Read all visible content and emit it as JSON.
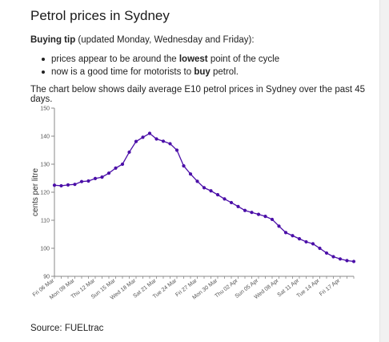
{
  "page": {
    "title": "Petrol prices in Sydney",
    "tip_bold": "Buying tip",
    "tip_rest": " (updated Monday, Wednesday and Friday):",
    "bullet1_pre": "prices appear to be around the ",
    "bullet1_bold": "lowest",
    "bullet1_post": " point of the cycle",
    "bullet2_pre": "now is a good time for motorists to ",
    "bullet2_bold": "buy",
    "bullet2_post": " petrol.",
    "description": "The chart below shows daily average E10 petrol prices in Sydney over the past 45 days.",
    "source": "Source: FUELtrac"
  },
  "colors": {
    "line": "#4b0fa8",
    "axis": "#888888"
  },
  "chart_data": {
    "type": "line",
    "ylabel": "cents per litre",
    "ylim": [
      90,
      150
    ],
    "yticks": [
      90,
      100,
      110,
      120,
      130,
      140,
      150
    ],
    "xtick_labels": [
      "Fri 06 Mar",
      "Mon 09 Mar",
      "Thu 12 Mar",
      "Sun 15 Mar",
      "Wed 18 Mar",
      "Sat 21 Mar",
      "Tue 24 Mar",
      "Fri 27 Mar",
      "Mon 30 Mar",
      "Thu 02 Apr",
      "Sun 05 Apr",
      "Wed 08 Apr",
      "Sat 11 Apr",
      "Tue 14 Apr",
      "Fri 17 Apr"
    ],
    "series": [
      {
        "x": [
          "06 Mar",
          "07 Mar",
          "08 Mar",
          "09 Mar",
          "10 Mar",
          "11 Mar",
          "12 Mar",
          "13 Mar",
          "14 Mar",
          "15 Mar",
          "16 Mar",
          "17 Mar",
          "18 Mar",
          "19 Mar",
          "20 Mar",
          "21 Mar",
          "22 Mar",
          "23 Mar",
          "24 Mar",
          "25 Mar",
          "26 Mar",
          "27 Mar",
          "28 Mar",
          "29 Mar",
          "30 Mar",
          "31 Mar",
          "01 Apr",
          "02 Apr",
          "03 Apr",
          "04 Apr",
          "05 Apr",
          "06 Apr",
          "07 Apr",
          "08 Apr",
          "09 Apr",
          "10 Apr",
          "11 Apr",
          "12 Apr",
          "13 Apr",
          "14 Apr",
          "15 Apr",
          "16 Apr",
          "17 Apr",
          "18 Apr",
          "19 Apr"
        ],
        "values": [
          122.5,
          122.3,
          122.6,
          122.8,
          123.8,
          124.0,
          124.9,
          125.4,
          126.8,
          128.6,
          130.0,
          134.3,
          138.1,
          139.6,
          141.0,
          139.0,
          138.2,
          137.3,
          135.0,
          129.4,
          126.5,
          123.9,
          121.6,
          120.5,
          119.1,
          117.6,
          116.3,
          114.9,
          113.5,
          112.8,
          112.1,
          111.4,
          110.3,
          107.9,
          105.6,
          104.5,
          103.4,
          102.3,
          101.6,
          100.0,
          98.3,
          97.0,
          96.2,
          95.6,
          95.3
        ]
      }
    ]
  }
}
